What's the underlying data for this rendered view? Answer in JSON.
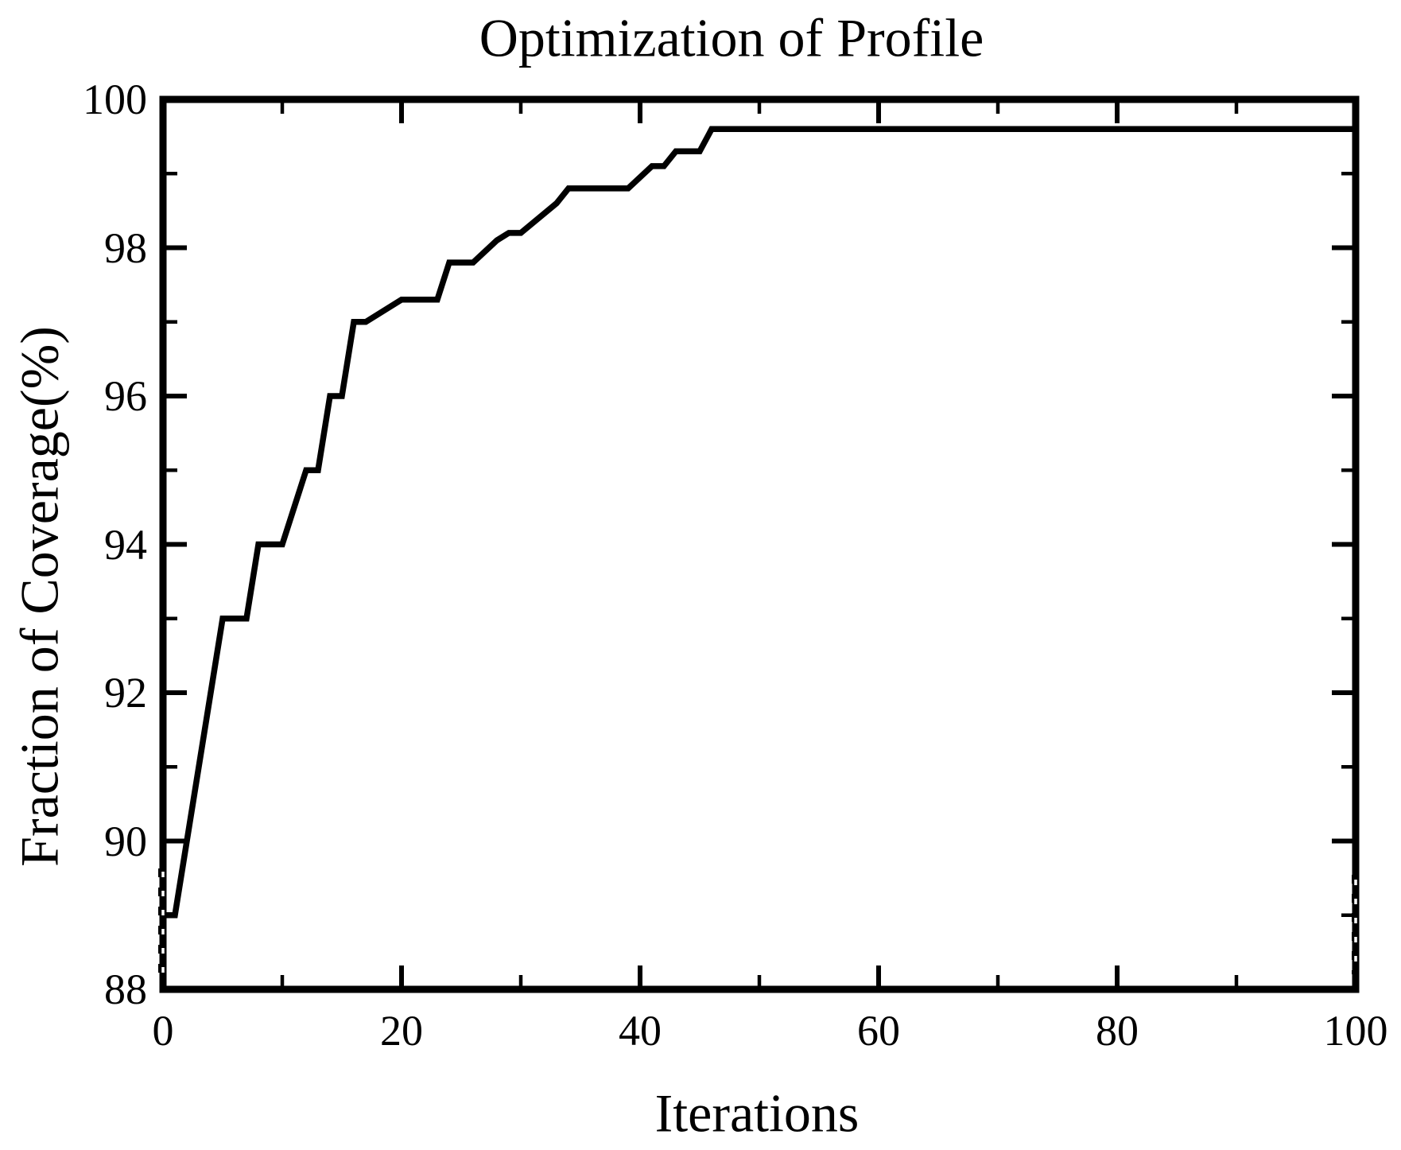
{
  "figure": {
    "background_color": "#ffffff",
    "foreground_color": "#000000"
  },
  "chart_data": {
    "type": "line",
    "title": "Optimization of Profile",
    "xlabel": "Iterations",
    "ylabel": "Fraction of Coverage(%)",
    "xlim": [
      0,
      100
    ],
    "ylim": [
      88,
      100
    ],
    "grid": false,
    "legend": "none",
    "x_major_ticks": [
      0,
      20,
      40,
      60,
      80,
      100
    ],
    "x_minor_ticks": [
      10,
      30,
      50,
      70,
      90
    ],
    "y_major_ticks": [
      88,
      90,
      92,
      94,
      96,
      98,
      100
    ],
    "y_minor_ticks": [
      89,
      91,
      93,
      95,
      97,
      99
    ],
    "x_tick_labels": [
      "0",
      "20",
      "40",
      "60",
      "80",
      "100"
    ],
    "y_tick_labels": [
      "88",
      "90",
      "92",
      "94",
      "96",
      "98",
      "100"
    ],
    "series": [
      {
        "name": "fraction-of-coverage",
        "color": "#000000",
        "points": [
          [
            0,
            89.0
          ],
          [
            1,
            89.0
          ],
          [
            5,
            93.0
          ],
          [
            7,
            93.0
          ],
          [
            8,
            94.0
          ],
          [
            10,
            94.0
          ],
          [
            12,
            95.0
          ],
          [
            13,
            95.0
          ],
          [
            14,
            96.0
          ],
          [
            15,
            96.0
          ],
          [
            16,
            97.0
          ],
          [
            17,
            97.0
          ],
          [
            20,
            97.3
          ],
          [
            23,
            97.3
          ],
          [
            24,
            97.8
          ],
          [
            26,
            97.8
          ],
          [
            28,
            98.1
          ],
          [
            29,
            98.2
          ],
          [
            30,
            98.2
          ],
          [
            33,
            98.6
          ],
          [
            34,
            98.8
          ],
          [
            39,
            98.8
          ],
          [
            41,
            99.1
          ],
          [
            42,
            99.1
          ],
          [
            43,
            99.3
          ],
          [
            45,
            99.3
          ],
          [
            46,
            99.6
          ],
          [
            100,
            99.6
          ]
        ]
      }
    ]
  }
}
